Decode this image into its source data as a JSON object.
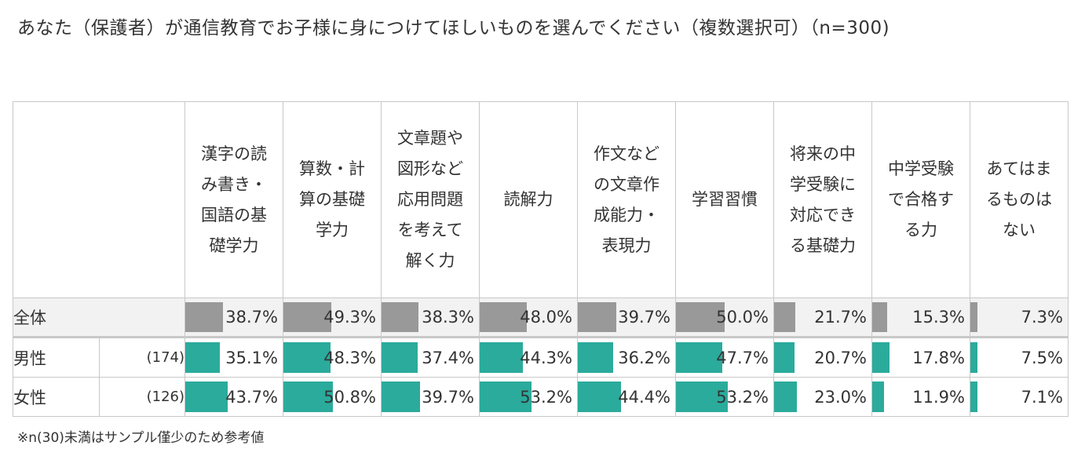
{
  "title": "あなた（保護者）が通信教育でお子様に身につけてほしいものを選んでください（複数選択可）（n=300)",
  "footnote": "※n(30)未満はサンプル僅少のため参考値",
  "colors": {
    "total_bar": "#999999",
    "gender_bar": "#2bab9c"
  },
  "chart_data": {
    "type": "table",
    "title": "あなた（保護者）が通信教育でお子様に身につけてほしいものを選んでください（複数選択可）（n=300)",
    "unit": "%",
    "columns": [
      "漢字の読み書き・国語の基礎学力",
      "算数・計算の基礎学力",
      "文章題や図形など応用問題を考えて解く力",
      "読解力",
      "作文などの文章作成能力・表現力",
      "学習習慣",
      "将来の中学受験に対応できる基礎力",
      "中学受験で合格する力",
      "あてはまるものはない"
    ],
    "rows": [
      {
        "label": "全体",
        "n": "",
        "style": "total",
        "values": [
          38.7,
          49.3,
          38.3,
          48.0,
          39.7,
          50.0,
          21.7,
          15.3,
          7.3
        ],
        "display": [
          "38.7%",
          "49.3%",
          "38.3%",
          "48.0%",
          "39.7%",
          "50.0%",
          "21.7%",
          "15.3%",
          "7.3%"
        ]
      },
      {
        "label": "男性",
        "n": "(174)",
        "style": "gender",
        "values": [
          35.1,
          48.3,
          37.4,
          44.3,
          36.2,
          47.7,
          20.7,
          17.8,
          7.5
        ],
        "display": [
          "35.1%",
          "48.3%",
          "37.4%",
          "44.3%",
          "36.2%",
          "47.7%",
          "20.7%",
          "17.8%",
          "7.5%"
        ]
      },
      {
        "label": "女性",
        "n": "(126)",
        "style": "gender",
        "values": [
          43.7,
          50.8,
          39.7,
          53.2,
          44.4,
          53.2,
          23.0,
          11.9,
          7.1
        ],
        "display": [
          "43.7%",
          "50.8%",
          "39.7%",
          "53.2%",
          "44.4%",
          "53.2%",
          "23.0%",
          "11.9%",
          "7.1%"
        ]
      }
    ]
  }
}
